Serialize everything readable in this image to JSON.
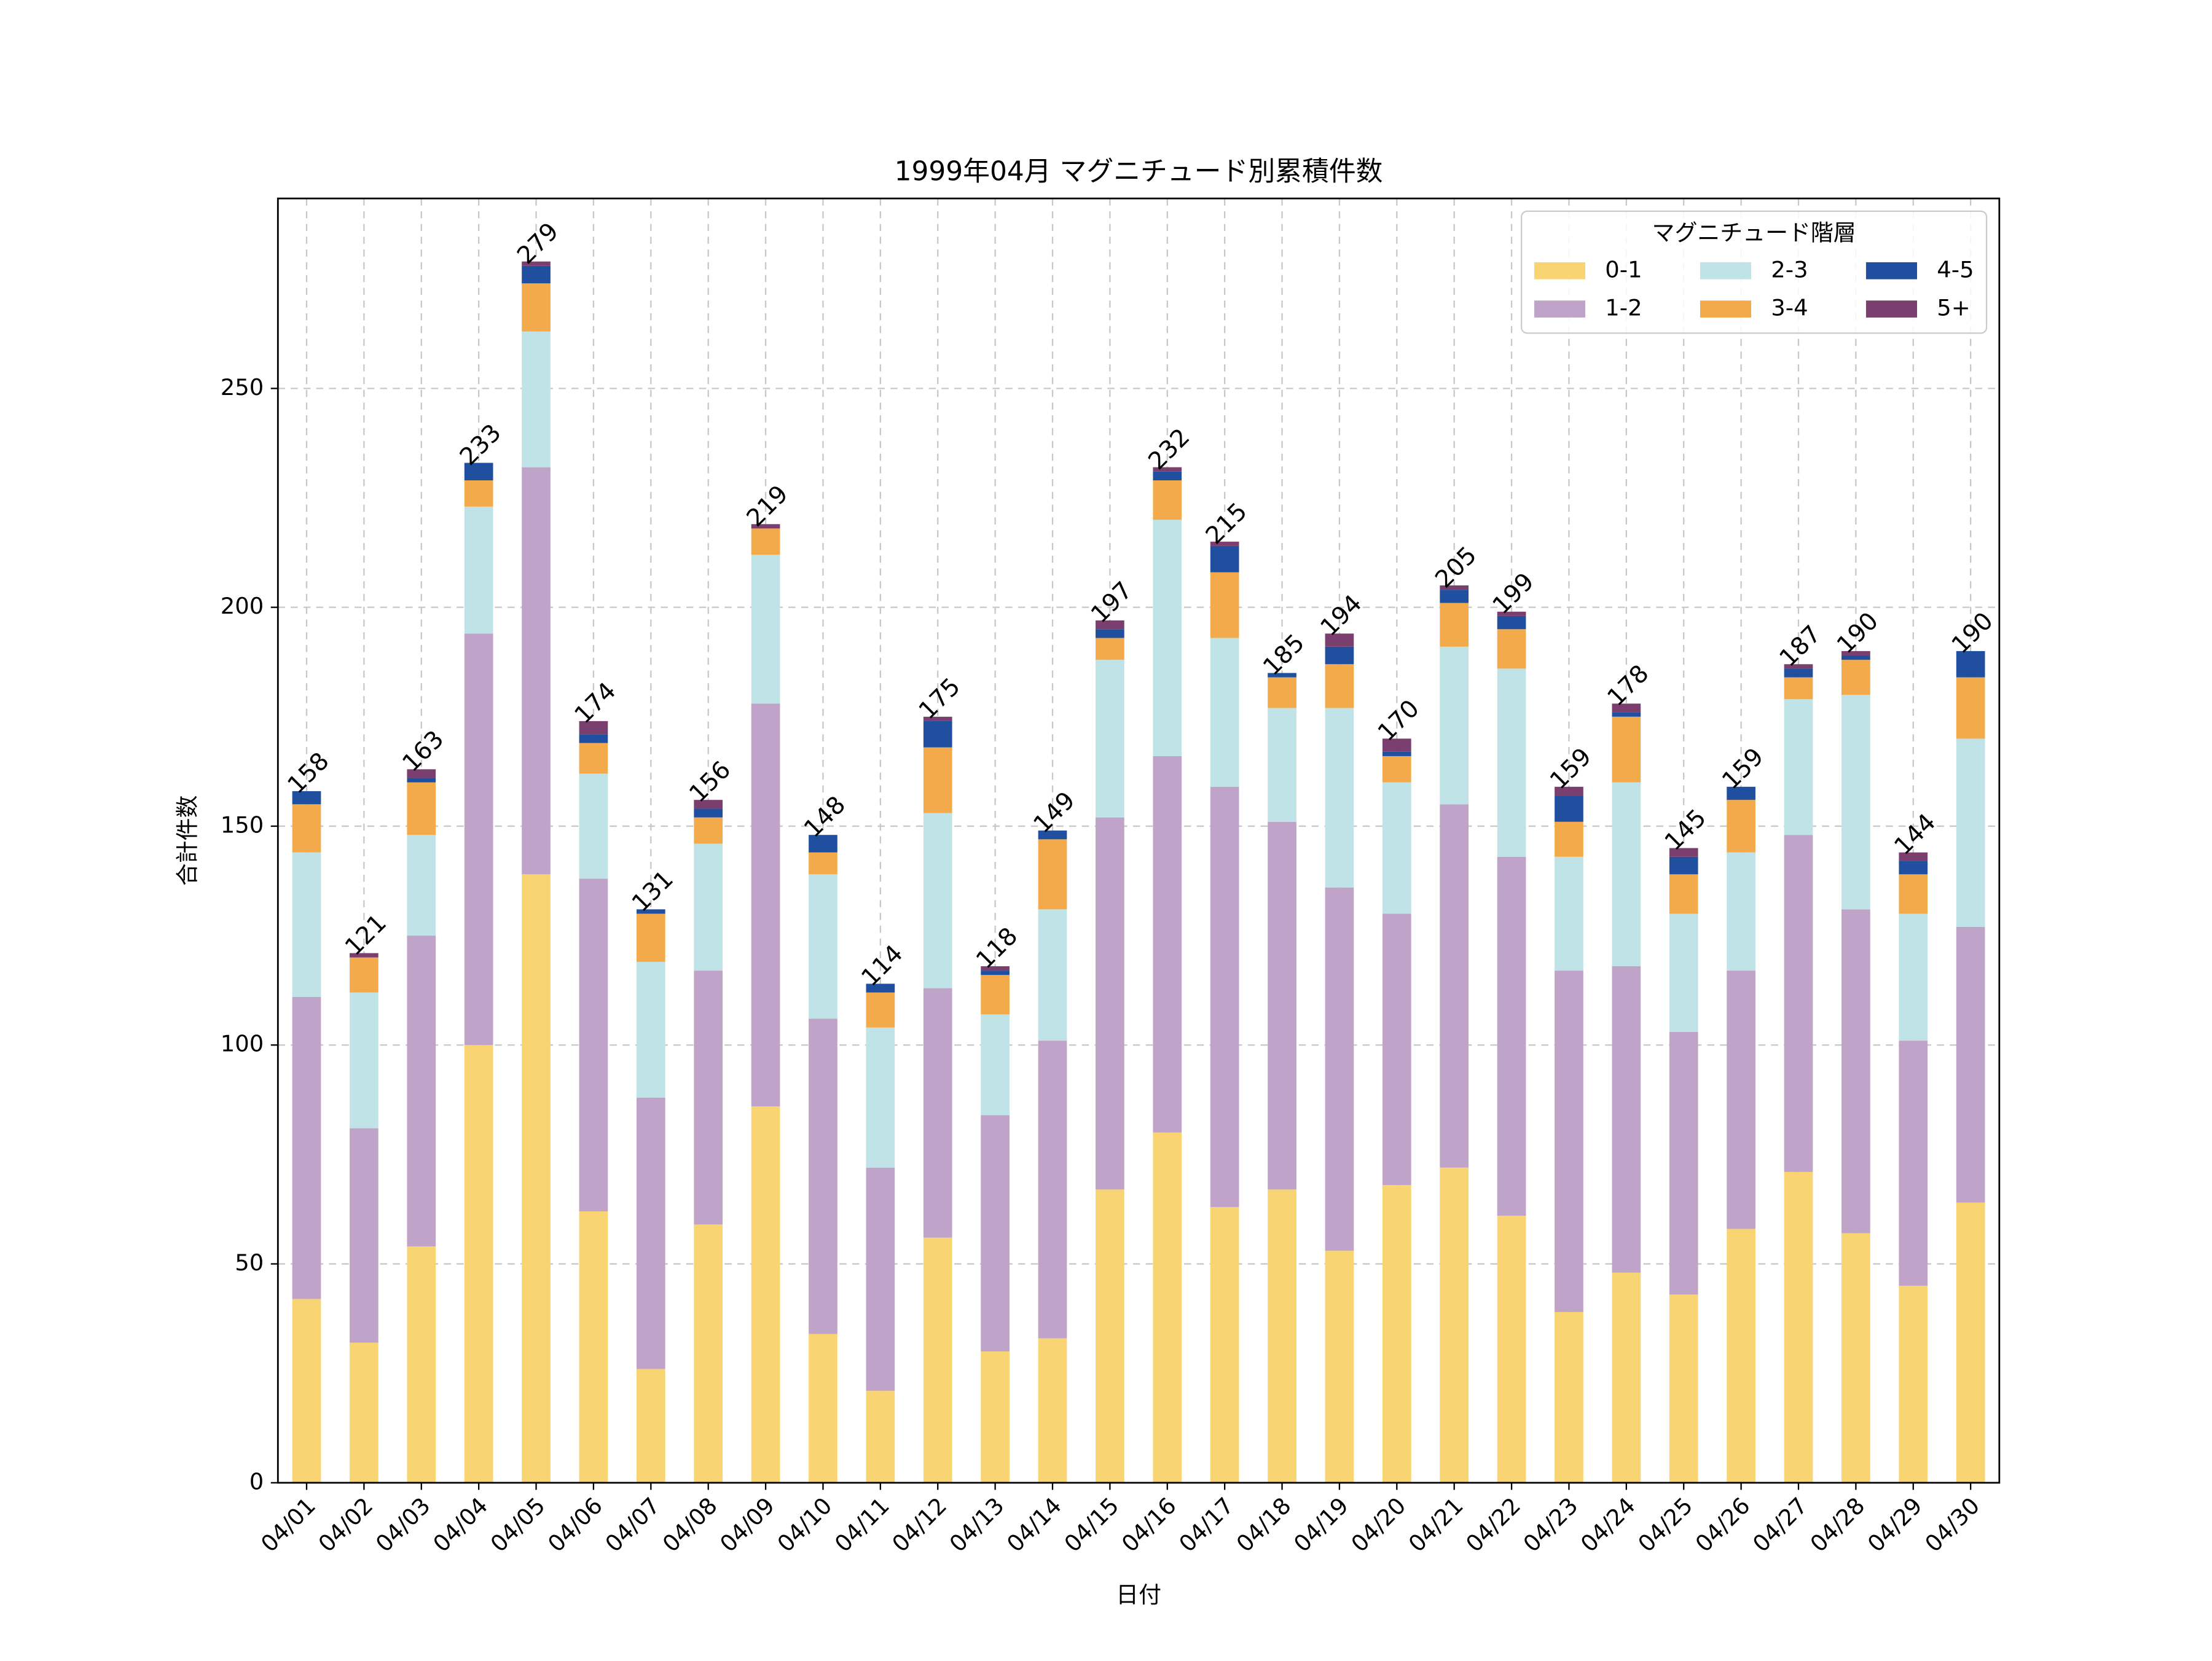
{
  "chart_data": {
    "type": "stacked-bar",
    "title": "1999年04月 マグニチュード別累積件数",
    "x_label": "日付",
    "y_label": "合計件数",
    "categories": [
      "04/01",
      "04/02",
      "04/03",
      "04/04",
      "04/05",
      "04/06",
      "04/07",
      "04/08",
      "04/09",
      "04/10",
      "04/11",
      "04/12",
      "04/13",
      "04/14",
      "04/15",
      "04/16",
      "04/17",
      "04/18",
      "04/19",
      "04/20",
      "04/21",
      "04/22",
      "04/23",
      "04/24",
      "04/25",
      "04/26",
      "04/27",
      "04/28",
      "04/29",
      "04/30"
    ],
    "series": [
      {
        "name": "0-1",
        "color": "#f9d472",
        "values": [
          42,
          32,
          54,
          100,
          139,
          62,
          26,
          59,
          86,
          34,
          21,
          56,
          30,
          33,
          67,
          80,
          63,
          67,
          53,
          68,
          72,
          61,
          39,
          48,
          43,
          58,
          71,
          57,
          45,
          64
        ]
      },
      {
        "name": "1-2",
        "color": "#c0a3c8",
        "values": [
          69,
          49,
          71,
          94,
          93,
          76,
          62,
          58,
          92,
          72,
          51,
          57,
          54,
          68,
          85,
          86,
          96,
          84,
          83,
          62,
          83,
          82,
          78,
          70,
          60,
          59,
          77,
          74,
          56,
          63
        ]
      },
      {
        "name": "2-3",
        "color": "#bfe3e6",
        "values": [
          33,
          31,
          23,
          29,
          31,
          24,
          31,
          29,
          34,
          33,
          32,
          40,
          23,
          30,
          36,
          54,
          34,
          26,
          41,
          30,
          36,
          43,
          26,
          42,
          27,
          27,
          31,
          49,
          29,
          43
        ]
      },
      {
        "name": "3-4",
        "color": "#f3aa4a",
        "values": [
          11,
          8,
          12,
          6,
          11,
          7,
          11,
          6,
          6,
          5,
          8,
          15,
          9,
          16,
          5,
          9,
          15,
          7,
          10,
          6,
          10,
          9,
          8,
          15,
          9,
          12,
          5,
          8,
          9,
          14
        ]
      },
      {
        "name": "4-5",
        "color": "#1f4f9e",
        "values": [
          3,
          0,
          1,
          4,
          4,
          2,
          1,
          2,
          0,
          4,
          2,
          6,
          1,
          2,
          2,
          2,
          6,
          1,
          4,
          1,
          3,
          3,
          6,
          1,
          4,
          3,
          2,
          1,
          3,
          6
        ]
      },
      {
        "name": "5+",
        "color": "#7b3f6f",
        "values": [
          0,
          1,
          2,
          0,
          1,
          3,
          0,
          2,
          1,
          0,
          0,
          1,
          1,
          0,
          2,
          1,
          1,
          0,
          3,
          3,
          1,
          1,
          2,
          2,
          2,
          0,
          1,
          1,
          2,
          0
        ]
      }
    ],
    "totals": [
      158,
      121,
      163,
      233,
      279,
      174,
      131,
      156,
      219,
      148,
      114,
      175,
      118,
      149,
      197,
      232,
      215,
      185,
      194,
      170,
      205,
      199,
      159,
      178,
      145,
      159,
      187,
      190,
      144,
      190
    ],
    "legend_title": "マグニチュード階層",
    "legend": "upper right",
    "ylim": [
      0,
      293.4
    ],
    "yticks": [
      0,
      50,
      100,
      150,
      200,
      250
    ],
    "grid": true
  }
}
